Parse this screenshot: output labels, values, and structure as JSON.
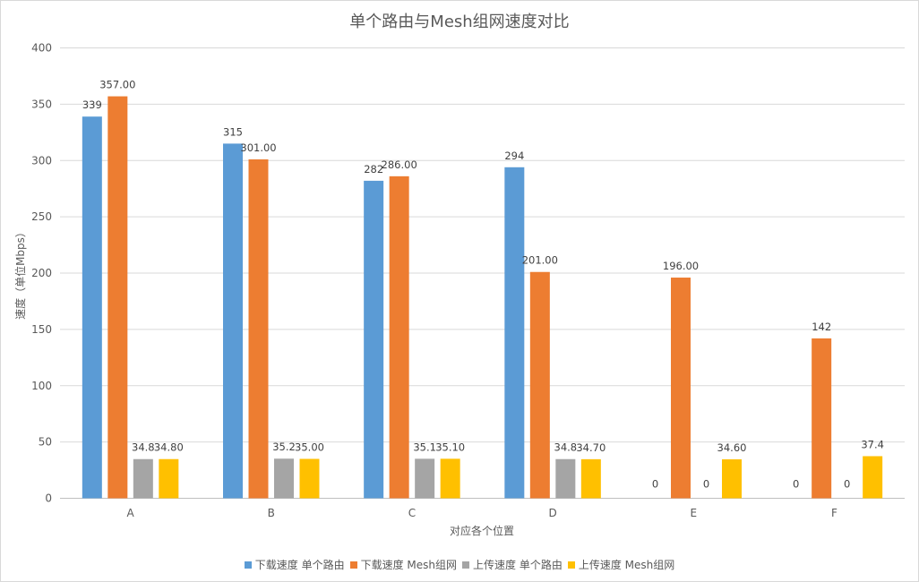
{
  "chart_data": {
    "type": "bar",
    "title": "单个路由与Mesh组网速度对比",
    "xlabel": "对应各个位置",
    "ylabel": "速度（单位Mbps）",
    "categories": [
      "A",
      "B",
      "C",
      "D",
      "E",
      "F"
    ],
    "ylim": [
      0,
      400
    ],
    "yticks": [
      0,
      50,
      100,
      150,
      200,
      250,
      300,
      350,
      400
    ],
    "grid": true,
    "legend_position": "bottom",
    "series": [
      {
        "name": "下载速度 单个路由",
        "color": "#5b9bd5",
        "values": [
          339,
          315,
          282,
          294,
          0,
          0
        ],
        "labels": [
          "339",
          "315",
          "282",
          "294",
          "0",
          "0"
        ]
      },
      {
        "name": "下载速度 Mesh组网",
        "color": "#ed7d31",
        "values": [
          357,
          301,
          286,
          201,
          196,
          142
        ],
        "labels": [
          "357.00",
          "301.00",
          "286.00",
          "201.00",
          "196.00",
          "142"
        ]
      },
      {
        "name": "上传速度 单个路由",
        "color": "#a5a5a5",
        "values": [
          34.8,
          35.2,
          35.1,
          34.8,
          0,
          0
        ],
        "labels": [
          "34.8",
          "35.2",
          "35.1",
          "34.8",
          "0",
          "0"
        ]
      },
      {
        "name": "上传速度 Mesh组网",
        "color": "#ffc000",
        "values": [
          34.8,
          35.0,
          35.1,
          34.7,
          34.6,
          37.4
        ],
        "labels": [
          "34.80",
          "35.00",
          "35.10",
          "34.70",
          "34.60",
          "37.4"
        ]
      }
    ]
  }
}
